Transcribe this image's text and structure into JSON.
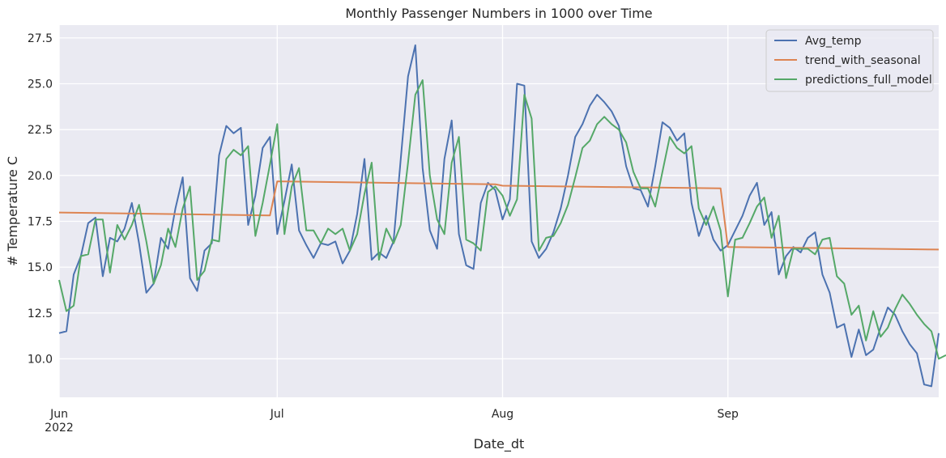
{
  "chart_data": {
    "type": "line",
    "title": "Monthly Passenger Numbers in 1000 over Time",
    "xlabel": "Date_dt",
    "ylabel": "# Temperature C",
    "xlim": [
      "2022-06-01",
      "2022-09-30"
    ],
    "ylim": [
      7.9,
      28.2
    ],
    "yticks": [
      10.0,
      12.5,
      15.0,
      17.5,
      20.0,
      22.5,
      25.0,
      27.5
    ],
    "ytick_labels": [
      "10.0",
      "12.5",
      "15.0",
      "17.5",
      "20.0",
      "22.5",
      "25.0",
      "27.5"
    ],
    "xticks": [
      {
        "date": "2022-06-01",
        "label": "Jun",
        "sublabel": "2022"
      },
      {
        "date": "2022-07-01",
        "label": "Jul",
        "sublabel": ""
      },
      {
        "date": "2022-08-01",
        "label": "Aug",
        "sublabel": ""
      },
      {
        "date": "2022-09-01",
        "label": "Sep",
        "sublabel": ""
      }
    ],
    "grid": true,
    "legend_position": "top-right",
    "series": [
      {
        "name": "Avg_temp",
        "color": "#4c72b0",
        "start_date": "2022-06-01",
        "values": [
          11.4,
          11.5,
          14.6,
          15.6,
          17.4,
          17.7,
          14.5,
          16.6,
          16.4,
          17.1,
          18.5,
          16.3,
          13.6,
          14.1,
          16.6,
          16.0,
          18.2,
          19.9,
          14.4,
          13.7,
          15.9,
          16.3,
          21.1,
          22.7,
          22.3,
          22.6,
          17.3,
          18.9,
          21.5,
          22.1,
          16.8,
          18.6,
          20.6,
          17.0,
          16.2,
          15.5,
          16.3,
          16.2,
          16.4,
          15.2,
          15.9,
          17.9,
          20.9,
          15.4,
          15.8,
          15.5,
          16.4,
          20.9,
          25.4,
          27.1,
          20.4,
          17.0,
          16.0,
          20.9,
          23.0,
          16.8,
          15.1,
          14.9,
          18.5,
          19.6,
          19.2,
          17.6,
          18.7,
          25.0,
          24.9,
          16.4,
          15.5,
          16.0,
          16.9,
          18.2,
          20.0,
          22.1,
          22.8,
          23.8,
          24.4,
          24.0,
          23.5,
          22.7,
          20.5,
          19.3,
          19.2,
          18.3,
          20.5,
          22.9,
          22.6,
          21.9,
          22.3,
          18.5,
          16.7,
          17.8,
          16.5,
          15.9,
          16.2,
          17.0,
          17.8,
          18.9,
          19.6,
          17.3,
          18.0,
          14.6,
          15.6,
          16.1,
          15.8,
          16.6,
          16.9,
          14.6,
          13.6,
          11.7,
          11.9,
          10.1,
          11.6,
          10.2,
          10.5,
          11.7,
          12.8,
          12.4,
          11.5,
          10.8,
          10.3,
          8.6,
          8.5,
          11.4
        ]
      },
      {
        "name": "trend_with_seasonal",
        "color": "#dd8452",
        "segments": [
          {
            "x": [
              "2022-06-01",
              "2022-06-30"
            ],
            "y": [
              17.98,
              17.82
            ]
          },
          {
            "x": [
              "2022-07-01",
              "2022-07-31"
            ],
            "y": [
              19.68,
              19.52
            ]
          },
          {
            "x": [
              "2022-08-01",
              "2022-08-31"
            ],
            "y": [
              19.44,
              19.3
            ]
          },
          {
            "x": [
              "2022-09-01",
              "2022-09-30"
            ],
            "y": [
              16.1,
              15.96
            ]
          }
        ]
      },
      {
        "name": "predictions_full_model",
        "color": "#55a868",
        "start_date": "2022-06-01",
        "values": [
          14.3,
          12.6,
          12.9,
          15.6,
          15.7,
          17.6,
          17.6,
          14.7,
          17.3,
          16.5,
          17.3,
          18.4,
          16.4,
          14.1,
          15.1,
          17.1,
          16.1,
          18.2,
          19.4,
          14.3,
          14.8,
          16.5,
          16.4,
          20.9,
          21.4,
          21.1,
          21.6,
          16.7,
          18.5,
          20.6,
          22.8,
          16.8,
          19.4,
          20.4,
          17.0,
          17.0,
          16.3,
          17.1,
          16.8,
          17.1,
          15.9,
          16.8,
          19.0,
          20.7,
          15.4,
          17.1,
          16.3,
          17.3,
          20.7,
          24.4,
          25.2,
          20.0,
          17.6,
          16.8,
          20.7,
          22.1,
          16.5,
          16.3,
          15.9,
          19.1,
          19.4,
          18.9,
          17.8,
          18.7,
          24.4,
          23.1,
          15.9,
          16.6,
          16.7,
          17.4,
          18.4,
          19.9,
          21.5,
          21.9,
          22.8,
          23.2,
          22.8,
          22.5,
          21.8,
          20.2,
          19.3,
          19.3,
          18.3,
          20.2,
          22.1,
          21.5,
          21.2,
          21.6,
          18.2,
          17.3,
          18.3,
          17.0,
          13.4,
          16.5,
          16.6,
          17.4,
          18.3,
          18.8,
          16.6,
          17.8,
          14.4,
          16.0,
          16.0,
          16.0,
          15.7,
          16.5,
          16.6,
          14.5,
          14.1,
          12.4,
          12.9,
          11.0,
          12.6,
          11.2,
          11.7,
          12.7,
          13.5,
          13.0,
          12.4,
          11.9,
          11.5,
          10.0,
          10.2
        ]
      }
    ]
  }
}
